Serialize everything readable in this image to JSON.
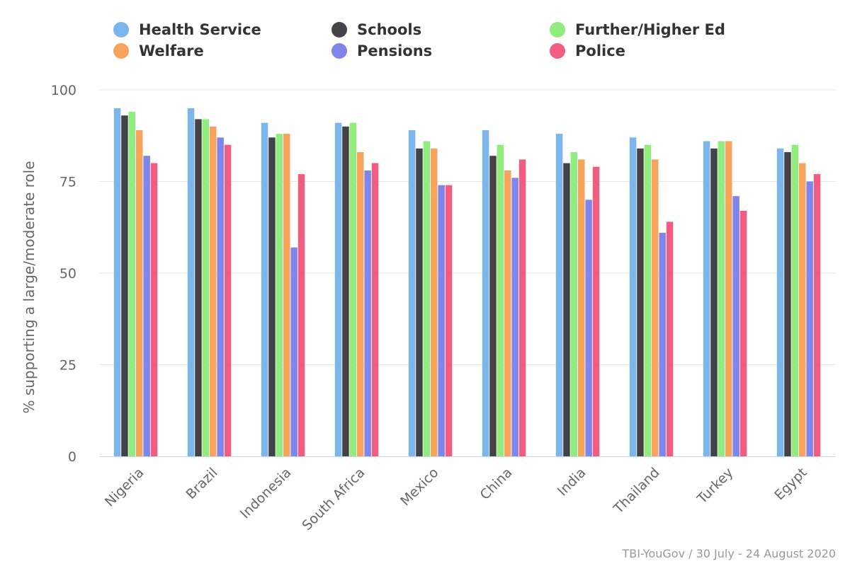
{
  "chart_data": {
    "type": "bar",
    "title": "",
    "xlabel": "",
    "ylabel": "% supporting a large/moderate role",
    "ylim": [
      0,
      100
    ],
    "yticks": [
      0,
      25,
      50,
      75,
      100
    ],
    "grid": true,
    "legend_placement": "top",
    "categories": [
      "Nigeria",
      "Brazil",
      "Indonesia",
      "South Africa",
      "Mexico",
      "China",
      "India",
      "Thailand",
      "Turkey",
      "Egypt"
    ],
    "series": [
      {
        "name": "Health Service",
        "color": "#7cb5ec",
        "values": [
          95,
          95,
          91,
          91,
          89,
          89,
          88,
          87,
          86,
          84
        ]
      },
      {
        "name": "Schools",
        "color": "#434348",
        "values": [
          93,
          92,
          87,
          90,
          84,
          82,
          80,
          84,
          84,
          83
        ]
      },
      {
        "name": "Further/Higher Ed",
        "color": "#90ed7d",
        "values": [
          94,
          92,
          88,
          91,
          86,
          85,
          83,
          85,
          86,
          85
        ]
      },
      {
        "name": "Welfare",
        "color": "#f7a35c",
        "values": [
          89,
          90,
          88,
          83,
          84,
          78,
          81,
          81,
          86,
          80
        ]
      },
      {
        "name": "Pensions",
        "color": "#8085e9",
        "values": [
          82,
          87,
          57,
          78,
          74,
          76,
          70,
          61,
          71,
          75
        ]
      },
      {
        "name": "Police",
        "color": "#f15c80",
        "values": [
          80,
          85,
          77,
          80,
          74,
          81,
          79,
          64,
          67,
          77
        ]
      }
    ]
  },
  "credit": "TBI-YouGov / 30 July - 24 August 2020"
}
